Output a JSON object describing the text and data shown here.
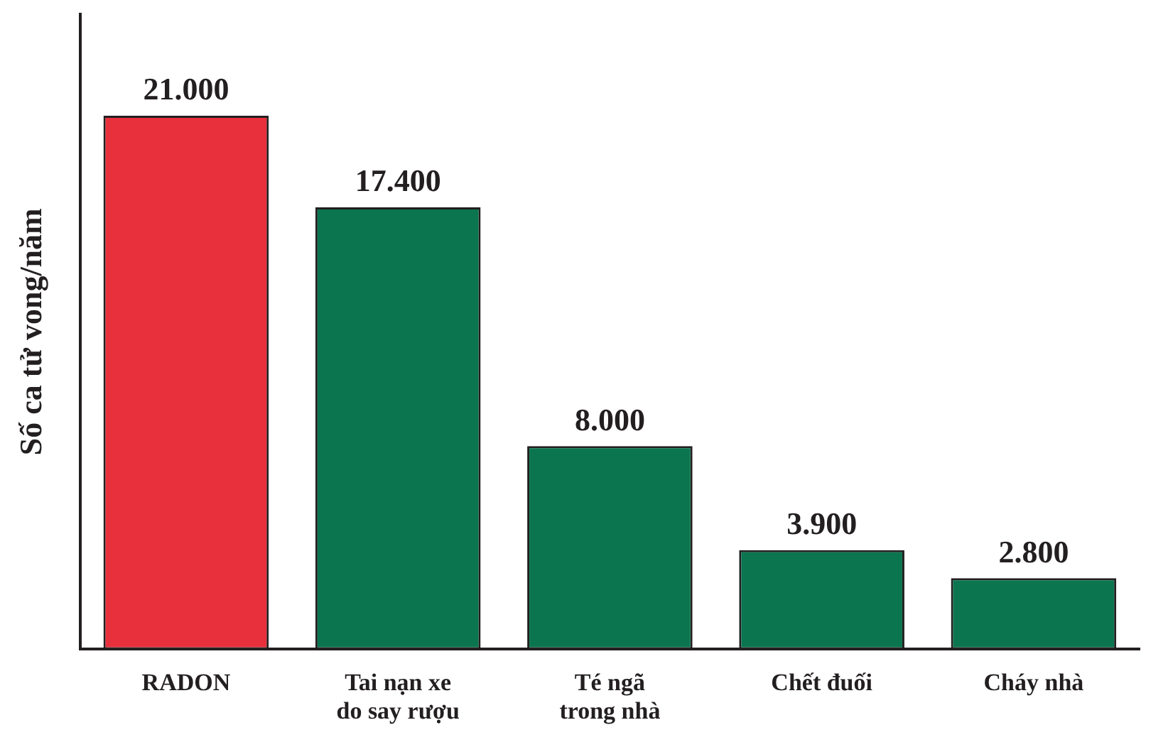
{
  "chart_data": {
    "type": "bar",
    "ylabel": "Số ca tử vong/năm",
    "categories": [
      "RADON",
      "Tai nạn xe do say rượu",
      "Té ngã trong nhà",
      "Chết đuối",
      "Cháy nhà"
    ],
    "values": [
      21000,
      17400,
      8000,
      3900,
      2800
    ],
    "value_labels": [
      "21.000",
      "17.400",
      "8.000",
      "3.900",
      "2.800"
    ],
    "colors": [
      "#e8303c",
      "#0b7550",
      "#0b7550",
      "#0b7550",
      "#0b7550"
    ],
    "ylim": [
      0,
      25000
    ],
    "tick_labels": "x",
    "grid": false,
    "legend": false
  }
}
